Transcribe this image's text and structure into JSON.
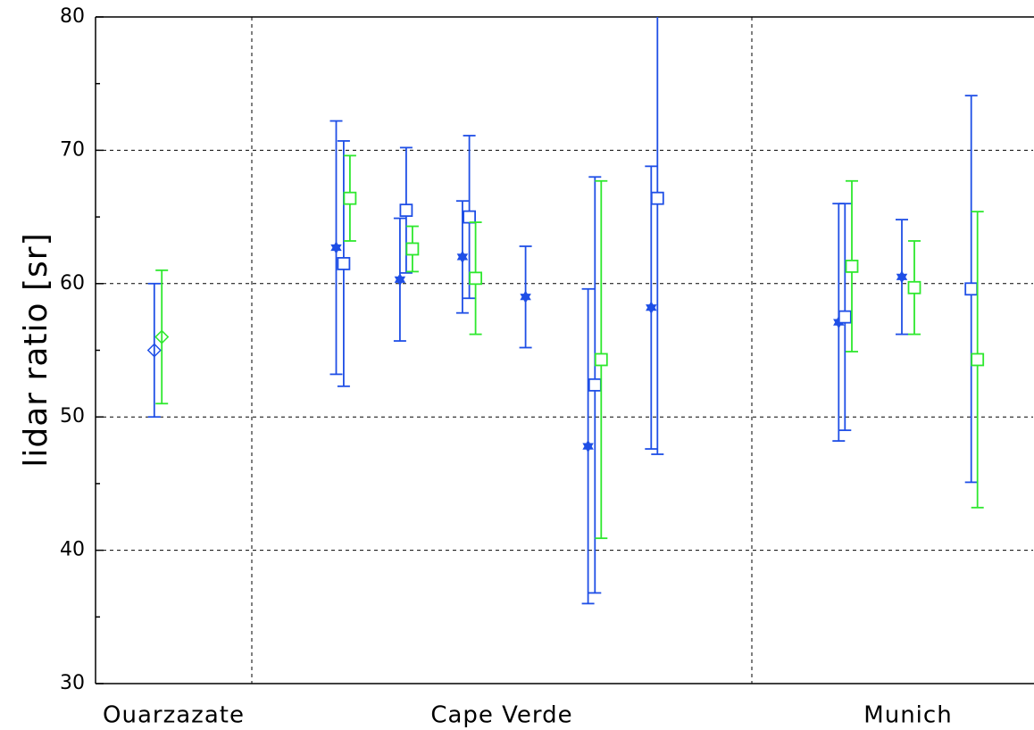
{
  "chart_data": {
    "type": "errorbar",
    "y_label": "lidar ratio [sr]",
    "xlim": [
      0,
      15
    ],
    "xticks": [
      {
        "value": 1.25,
        "label": "Ouarzazate"
      },
      {
        "value": 6.5,
        "label": "Cape Verde"
      },
      {
        "value": 13,
        "label": "Munich"
      }
    ],
    "xlines": [
      2.5,
      10.5
    ],
    "ylim": [
      30,
      80
    ],
    "yticks": [
      30,
      40,
      50,
      60,
      70,
      80
    ],
    "yminorticks": [
      35,
      45,
      55,
      65,
      75
    ],
    "grid": true,
    "series": [
      {
        "marker": "diamond",
        "color": "#1f4fe6",
        "x": [
          0.94
        ],
        "values": [
          55
        ],
        "errors": [
          5
        ]
      },
      {
        "marker": "diamond",
        "color": "#2ee82e",
        "x": [
          1.06
        ],
        "values": [
          56
        ],
        "errors": [
          5
        ]
      },
      {
        "marker": "star",
        "color": "#1f4fe6",
        "x": [
          3.85,
          4.87,
          5.87,
          6.88,
          7.88,
          8.89,
          11.89,
          12.9
        ],
        "values": [
          62.7,
          60.3,
          62.0,
          59.0,
          47.8,
          58.2,
          57.1,
          60.5
        ],
        "errors": [
          9.5,
          4.6,
          4.2,
          3.8,
          11.8,
          10.6,
          8.9,
          4.3
        ]
      },
      {
        "marker": "square",
        "color": "#1f4fe6",
        "x": [
          3.97,
          4.97,
          5.98,
          7.99,
          8.99,
          11.99,
          14.01
        ],
        "values": [
          61.5,
          65.5,
          65.0,
          52.4,
          66.4,
          57.5,
          59.6
        ],
        "errors": [
          9.2,
          4.7,
          6.1,
          15.6,
          19.2,
          8.5,
          14.5
        ]
      },
      {
        "marker": "square",
        "color": "#2ee82e",
        "x": [
          4.07,
          5.07,
          6.08,
          8.09,
          12.1,
          13.1,
          14.11
        ],
        "values": [
          66.4,
          62.6,
          60.4,
          54.3,
          61.3,
          59.7,
          54.3
        ],
        "errors": [
          3.2,
          1.7,
          4.2,
          13.4,
          6.4,
          3.5,
          11.1
        ]
      }
    ]
  }
}
